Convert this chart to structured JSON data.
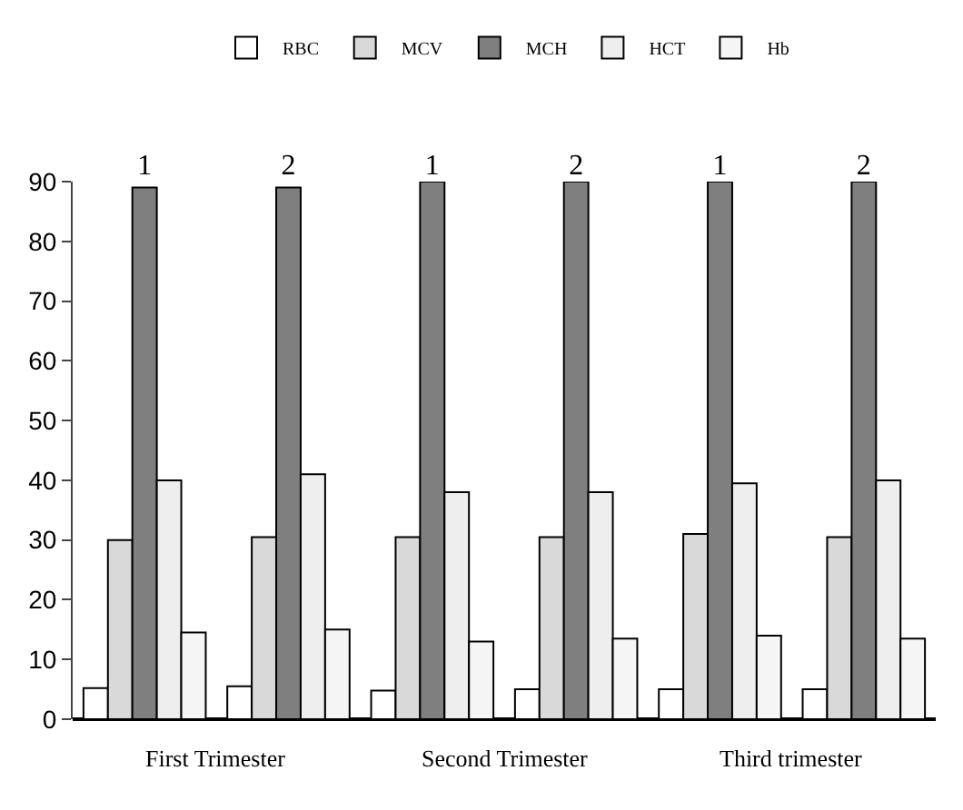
{
  "chart_data": {
    "type": "bar",
    "categories": [
      "1",
      "2",
      "1",
      "2",
      "1",
      "2"
    ],
    "series": [
      {
        "name": "RBC",
        "color": "#ffffff",
        "values": [
          5.2,
          5.5,
          4.8,
          5,
          5,
          5
        ]
      },
      {
        "name": "MCV",
        "color": "#d9d9d9",
        "values": [
          30,
          30.5,
          30.5,
          30.5,
          31,
          30.5
        ]
      },
      {
        "name": "MCH",
        "color": "#7f7f7f",
        "values": [
          89,
          89,
          90,
          90,
          90,
          90
        ]
      },
      {
        "name": "HCT",
        "color": "#eeeeee",
        "values": [
          40,
          41,
          38,
          38,
          39.5,
          40
        ]
      },
      {
        "name": "Hb",
        "color": "#f5f5f5",
        "values": [
          14.5,
          15,
          13,
          13.5,
          14,
          13.5
        ]
      }
    ],
    "annotations": [
      "First Trimester",
      "Second Trimester",
      "Third trimester"
    ],
    "ylim": [
      0,
      90
    ],
    "yticks": [
      0,
      10,
      20,
      30,
      40,
      50,
      60,
      70,
      80,
      90
    ],
    "grid": false,
    "legend": "top"
  }
}
